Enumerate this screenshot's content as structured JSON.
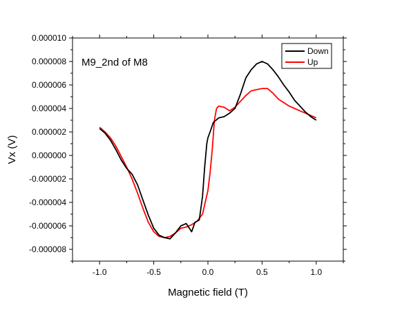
{
  "chart_data": {
    "type": "line",
    "title": "",
    "annotation": "M9_2nd of M8",
    "xlabel": "Magnetic field (T)",
    "ylabel": "Vx (V)",
    "xlim": [
      -1.25,
      1.25
    ],
    "ylim": [
      -9e-06,
      1e-05
    ],
    "x_ticks": [
      -1.0,
      -0.5,
      0.0,
      0.5,
      1.0
    ],
    "x_tick_labels": [
      "-1.0",
      "-0.5",
      "0.0",
      "0.5",
      "1.0"
    ],
    "y_ticks": [
      1e-05,
      8e-06,
      6e-06,
      4e-06,
      2e-06,
      0.0,
      -2e-06,
      -4e-06,
      -6e-06,
      -8e-06
    ],
    "y_tick_labels": [
      "0.000010",
      "0.000008",
      "0.000006",
      "0.000004",
      "0.000002",
      "0.000000",
      "-0.000002",
      "-0.000004",
      "-0.000006",
      "-0.000008"
    ],
    "grid": false,
    "legend_position": "top-right",
    "series": [
      {
        "name": "Down",
        "color": "#000000",
        "x": [
          -1.0,
          -0.95,
          -0.9,
          -0.85,
          -0.8,
          -0.75,
          -0.7,
          -0.65,
          -0.6,
          -0.55,
          -0.5,
          -0.45,
          -0.4,
          -0.35,
          -0.3,
          -0.25,
          -0.2,
          -0.15,
          -0.12,
          -0.08,
          -0.05,
          -0.03,
          -0.01,
          0.0,
          0.02,
          0.05,
          0.1,
          0.15,
          0.2,
          0.25,
          0.3,
          0.35,
          0.4,
          0.45,
          0.5,
          0.55,
          0.6,
          0.65,
          0.7,
          0.75,
          0.8,
          0.85,
          0.9,
          0.95,
          1.0
        ],
        "y": [
          2.3e-06,
          1.9e-06,
          1.3e-06,
          5e-07,
          -4e-07,
          -1.1e-06,
          -1.6e-06,
          -2.5e-06,
          -3.8e-06,
          -5.1e-06,
          -6.2e-06,
          -6.8e-06,
          -7e-06,
          -7.1e-06,
          -6.6e-06,
          -6e-06,
          -5.8e-06,
          -6.5e-06,
          -5.7e-06,
          -5.5e-06,
          -3.5e-06,
          -1e-06,
          1e-06,
          1.5e-06,
          2e-06,
          2.8e-06,
          3.2e-06,
          3.3e-06,
          3.6e-06,
          4e-06,
          5.2e-06,
          6.6e-06,
          7.3e-06,
          7.8e-06,
          8e-06,
          7.8e-06,
          7.3e-06,
          6.7e-06,
          6e-06,
          5.4e-06,
          4.7e-06,
          4.2e-06,
          3.7e-06,
          3.3e-06,
          3e-06
        ]
      },
      {
        "name": "Up",
        "color": "#ff0000",
        "x": [
          -1.0,
          -0.95,
          -0.9,
          -0.85,
          -0.8,
          -0.75,
          -0.7,
          -0.65,
          -0.6,
          -0.55,
          -0.5,
          -0.45,
          -0.4,
          -0.35,
          -0.3,
          -0.25,
          -0.2,
          -0.15,
          -0.1,
          -0.05,
          0.0,
          0.02,
          0.04,
          0.06,
          0.08,
          0.1,
          0.15,
          0.2,
          0.25,
          0.3,
          0.35,
          0.4,
          0.45,
          0.5,
          0.55,
          0.6,
          0.65,
          0.7,
          0.75,
          0.8,
          0.85,
          0.9,
          0.95,
          1.0
        ],
        "y": [
          2.4e-06,
          2e-06,
          1.5e-06,
          8e-07,
          -1e-07,
          -1e-06,
          -2e-06,
          -3.2e-06,
          -4.5e-06,
          -5.7e-06,
          -6.5e-06,
          -6.9e-06,
          -7e-06,
          -6.9e-06,
          -6.6e-06,
          -6.2e-06,
          -6.1e-06,
          -5.9e-06,
          -5.6e-06,
          -5e-06,
          -3e-06,
          -1.5e-06,
          5e-07,
          3e-06,
          4e-06,
          4.2e-06,
          4.1e-06,
          3.8e-06,
          4.1e-06,
          4.6e-06,
          5.1e-06,
          5.5e-06,
          5.6e-06,
          5.7e-06,
          5.7e-06,
          5.3e-06,
          4.8e-06,
          4.5e-06,
          4.2e-06,
          4e-06,
          3.8e-06,
          3.6e-06,
          3.4e-06,
          3.2e-06
        ]
      }
    ]
  }
}
